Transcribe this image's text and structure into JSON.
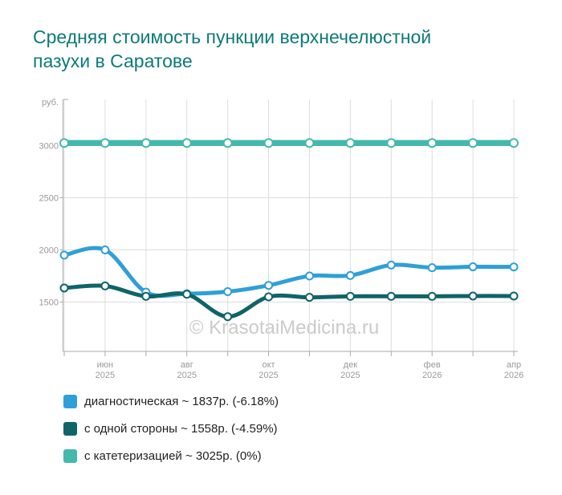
{
  "title": {
    "line1": "Средняя стоимость пункции верхнечелюстной",
    "line2": "пазухи в Саратове",
    "color": "#0d7a78"
  },
  "watermark": {
    "text": "© KrasotaiMedicina.ru"
  },
  "chart_data": {
    "type": "line",
    "title": "Средняя стоимость пункции верхнечелюстной пазухи в Саратове",
    "y_axis": {
      "unit_label": "руб.",
      "ticks": [
        3000,
        2500,
        2000,
        1500
      ],
      "min": 1150,
      "max": 3150
    },
    "x_axis": {
      "n_points": 12,
      "visible_tick_labels": [
        {
          "index": 1,
          "month": "июн",
          "year": "2025"
        },
        {
          "index": 3,
          "month": "авг",
          "year": "2025"
        },
        {
          "index": 5,
          "month": "окт",
          "year": "2025"
        },
        {
          "index": 7,
          "month": "дек",
          "year": "2025"
        },
        {
          "index": 9,
          "month": "фев",
          "year": "2026"
        },
        {
          "index": 11,
          "month": "апр",
          "year": "2026"
        }
      ]
    },
    "grid": true,
    "legend_position": "bottom-left",
    "series": [
      {
        "name": "диагностическая",
        "color": "#2f9fd8",
        "line_width": 5,
        "values": [
          1950,
          2000,
          1595,
          1580,
          1600,
          1660,
          1750,
          1755,
          1855,
          1830,
          1838,
          1837
        ]
      },
      {
        "name": "с одной стороны",
        "color": "#0f6468",
        "line_width": 5,
        "values": [
          1635,
          1655,
          1555,
          1575,
          1360,
          1550,
          1545,
          1555,
          1555,
          1555,
          1558,
          1558
        ]
      },
      {
        "name": "с катетеризацией",
        "color": "#45b8ac",
        "line_width": 7.5,
        "values": [
          3025,
          3025,
          3025,
          3025,
          3025,
          3025,
          3025,
          3025,
          3025,
          3025,
          3025,
          3025
        ]
      }
    ]
  },
  "legend": {
    "items": [
      {
        "label": "диагностическая ~ 1837р. (-6.18%)",
        "color": "#2f9fd8"
      },
      {
        "label": "с одной стороны ~ 1558р. (-4.59%)",
        "color": "#0f6468"
      },
      {
        "label": "с катетеризацией ~ 3025р. (0%)",
        "color": "#45b8ac"
      }
    ]
  },
  "colors": {
    "grid": "#dddddd",
    "axis": "#aaaaaa",
    "axis_label": "#999999",
    "watermark": "#cbcbcb"
  }
}
